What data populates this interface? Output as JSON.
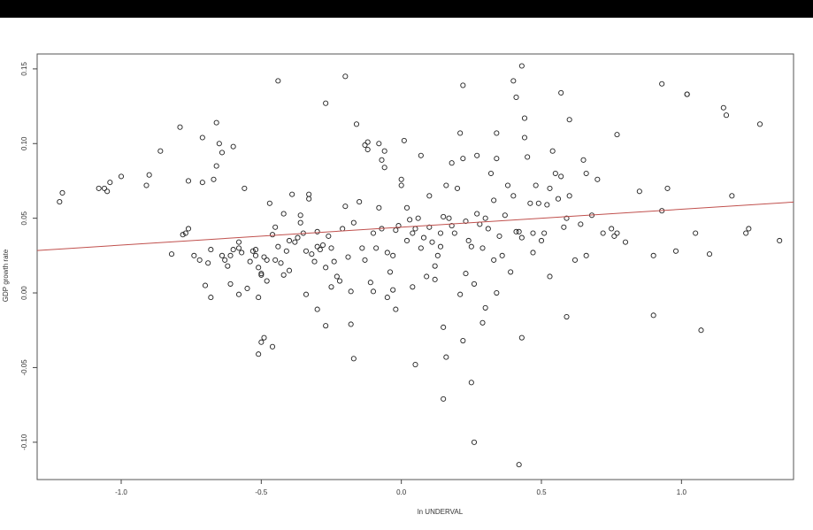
{
  "chart_data": {
    "type": "scatter",
    "title": "",
    "xlabel": "ln UNDERVAL",
    "ylabel": "GDP growth rate",
    "xlim": [
      -1.3,
      1.4
    ],
    "ylim": [
      -0.125,
      0.16
    ],
    "x_ticks": [
      -1.0,
      -0.5,
      0.0,
      0.5,
      1.0
    ],
    "x_tick_labels": [
      "-1.0",
      "-0.5",
      "0.0",
      "0.5",
      "1.0"
    ],
    "y_ticks": [
      -0.1,
      -0.05,
      0.0,
      0.05,
      0.1,
      0.15
    ],
    "y_tick_labels": [
      "-0.10",
      "-0.05",
      "0.00",
      "0.05",
      "0.10",
      "0.15"
    ],
    "grid": false,
    "regression_line": {
      "color": "#c0504d",
      "intercept": 0.044,
      "slope": 0.012
    },
    "points": [
      [
        -1.22,
        0.061
      ],
      [
        -1.21,
        0.067
      ],
      [
        -1.08,
        0.07
      ],
      [
        -1.06,
        0.07
      ],
      [
        -1.05,
        0.068
      ],
      [
        -1.04,
        0.074
      ],
      [
        -1.0,
        0.078
      ],
      [
        -0.91,
        0.072
      ],
      [
        -0.9,
        0.079
      ],
      [
        -0.86,
        0.095
      ],
      [
        -0.82,
        0.026
      ],
      [
        -0.79,
        0.111
      ],
      [
        -0.78,
        0.039
      ],
      [
        -0.77,
        0.04
      ],
      [
        -0.76,
        0.043
      ],
      [
        -0.76,
        0.075
      ],
      [
        -0.74,
        0.025
      ],
      [
        -0.72,
        0.022
      ],
      [
        -0.71,
        0.074
      ],
      [
        -0.71,
        0.104
      ],
      [
        -0.7,
        0.005
      ],
      [
        -0.69,
        0.02
      ],
      [
        -0.68,
        0.029
      ],
      [
        -0.67,
        0.076
      ],
      [
        -0.66,
        0.085
      ],
      [
        -0.66,
        0.114
      ],
      [
        -0.65,
        0.1
      ],
      [
        -0.64,
        0.094
      ],
      [
        -0.64,
        0.025
      ],
      [
        -0.63,
        0.022
      ],
      [
        -0.62,
        0.018
      ],
      [
        -0.61,
        0.006
      ],
      [
        -0.61,
        0.025
      ],
      [
        -0.6,
        0.029
      ],
      [
        -0.6,
        0.098
      ],
      [
        -0.58,
        0.03
      ],
      [
        -0.57,
        0.027
      ],
      [
        -0.56,
        0.07
      ],
      [
        -0.55,
        0.003
      ],
      [
        -0.54,
        0.021
      ],
      [
        -0.53,
        0.028
      ],
      [
        -0.52,
        0.029
      ],
      [
        -0.52,
        0.025
      ],
      [
        -0.51,
        0.017
      ],
      [
        -0.5,
        0.012
      ],
      [
        -0.5,
        0.013
      ],
      [
        -0.49,
        0.024
      ],
      [
        -0.48,
        0.008
      ],
      [
        -0.48,
        0.022
      ],
      [
        -0.47,
        0.06
      ],
      [
        -0.46,
        0.039
      ],
      [
        -0.45,
        0.022
      ],
      [
        -0.45,
        0.044
      ],
      [
        -0.44,
        0.031
      ],
      [
        -0.43,
        0.02
      ],
      [
        -0.42,
        0.012
      ],
      [
        -0.41,
        0.028
      ],
      [
        -0.4,
        0.035
      ],
      [
        -0.39,
        0.066
      ],
      [
        -0.38,
        0.034
      ],
      [
        -0.37,
        0.037
      ],
      [
        -0.36,
        0.052
      ],
      [
        -0.35,
        0.04
      ],
      [
        -0.34,
        0.028
      ],
      [
        -0.33,
        0.063
      ],
      [
        -0.33,
        0.066
      ],
      [
        -0.32,
        0.026
      ],
      [
        -0.31,
        0.021
      ],
      [
        -0.3,
        0.031
      ],
      [
        -0.29,
        0.029
      ],
      [
        -0.28,
        0.032
      ],
      [
        -0.27,
        0.017
      ],
      [
        -0.26,
        0.038
      ],
      [
        -0.25,
        0.03
      ],
      [
        -0.24,
        0.021
      ],
      [
        -0.23,
        0.011
      ],
      [
        -0.22,
        0.008
      ],
      [
        -0.21,
        0.043
      ],
      [
        -0.2,
        0.058
      ],
      [
        -0.19,
        0.024
      ],
      [
        -0.18,
        0.001
      ],
      [
        -0.17,
        0.047
      ],
      [
        -0.16,
        0.113
      ],
      [
        -0.15,
        0.061
      ],
      [
        -0.14,
        0.03
      ],
      [
        -0.13,
        0.022
      ],
      [
        -0.12,
        0.101
      ],
      [
        -0.12,
        0.096
      ],
      [
        -0.11,
        0.007
      ],
      [
        -0.1,
        0.04
      ],
      [
        -0.09,
        0.03
      ],
      [
        -0.08,
        0.1
      ],
      [
        -0.08,
        0.057
      ],
      [
        -0.07,
        0.089
      ],
      [
        -0.06,
        0.084
      ],
      [
        -0.06,
        0.095
      ],
      [
        -0.05,
        0.027
      ],
      [
        -0.04,
        0.014
      ],
      [
        -0.03,
        0.002
      ],
      [
        -0.02,
        0.042
      ],
      [
        -0.01,
        0.045
      ],
      [
        0.0,
        0.072
      ],
      [
        0.0,
        0.076
      ],
      [
        0.01,
        0.102
      ],
      [
        0.02,
        0.057
      ],
      [
        0.03,
        0.049
      ],
      [
        0.04,
        0.04
      ],
      [
        0.05,
        0.043
      ],
      [
        0.06,
        0.05
      ],
      [
        0.07,
        0.03
      ],
      [
        0.08,
        0.037
      ],
      [
        0.09,
        0.011
      ],
      [
        0.1,
        0.044
      ],
      [
        0.11,
        0.034
      ],
      [
        0.12,
        0.018
      ],
      [
        0.13,
        0.025
      ],
      [
        0.14,
        0.04
      ],
      [
        0.15,
        0.051
      ],
      [
        0.16,
        0.072
      ],
      [
        0.17,
        0.05
      ],
      [
        0.18,
        0.045
      ],
      [
        0.19,
        0.04
      ],
      [
        0.2,
        0.07
      ],
      [
        0.21,
        0.107
      ],
      [
        0.22,
        0.09
      ],
      [
        0.23,
        0.048
      ],
      [
        0.24,
        0.035
      ],
      [
        0.25,
        0.031
      ],
      [
        0.26,
        0.006
      ],
      [
        0.27,
        0.053
      ],
      [
        0.28,
        0.046
      ],
      [
        0.29,
        0.03
      ],
      [
        0.3,
        0.05
      ],
      [
        0.31,
        0.043
      ],
      [
        0.32,
        0.08
      ],
      [
        0.33,
        0.062
      ],
      [
        0.34,
        0.09
      ],
      [
        0.35,
        0.038
      ],
      [
        0.36,
        0.025
      ],
      [
        0.37,
        0.052
      ],
      [
        0.38,
        0.072
      ],
      [
        0.39,
        0.014
      ],
      [
        0.4,
        0.065
      ],
      [
        0.41,
        0.041
      ],
      [
        0.42,
        0.041
      ],
      [
        0.43,
        0.037
      ],
      [
        0.44,
        0.104
      ],
      [
        0.45,
        0.091
      ],
      [
        0.46,
        0.06
      ],
      [
        0.47,
        0.04
      ],
      [
        0.48,
        0.072
      ],
      [
        0.49,
        0.06
      ],
      [
        0.5,
        0.035
      ],
      [
        0.51,
        0.04
      ],
      [
        0.52,
        0.059
      ],
      [
        0.53,
        0.07
      ],
      [
        0.54,
        0.095
      ],
      [
        0.55,
        0.08
      ],
      [
        0.56,
        0.063
      ],
      [
        0.57,
        0.078
      ],
      [
        0.58,
        0.044
      ],
      [
        0.59,
        0.05
      ],
      [
        0.6,
        0.065
      ],
      [
        0.62,
        0.022
      ],
      [
        0.64,
        0.046
      ],
      [
        0.65,
        0.089
      ],
      [
        0.66,
        0.08
      ],
      [
        0.68,
        0.052
      ],
      [
        0.7,
        0.076
      ],
      [
        0.72,
        0.04
      ],
      [
        0.75,
        0.043
      ],
      [
        0.77,
        0.04
      ],
      [
        0.8,
        0.034
      ],
      [
        0.85,
        0.068
      ],
      [
        0.9,
        0.025
      ],
      [
        0.93,
        0.055
      ],
      [
        0.95,
        0.07
      ],
      [
        0.98,
        0.028
      ],
      [
        1.02,
        0.133
      ],
      [
        1.05,
        0.04
      ],
      [
        1.1,
        0.026
      ],
      [
        1.15,
        0.124
      ],
      [
        1.16,
        0.119
      ],
      [
        1.18,
        0.065
      ],
      [
        1.23,
        0.04
      ],
      [
        1.24,
        0.043
      ],
      [
        1.28,
        0.113
      ],
      [
        1.35,
        0.035
      ],
      [
        -0.44,
        0.142
      ],
      [
        -0.27,
        0.127
      ],
      [
        -0.2,
        0.145
      ],
      [
        0.22,
        0.139
      ],
      [
        0.4,
        0.142
      ],
      [
        0.41,
        0.131
      ],
      [
        0.43,
        0.152
      ],
      [
        0.57,
        0.134
      ],
      [
        0.6,
        0.116
      ],
      [
        0.93,
        0.14
      ],
      [
        1.02,
        0.133
      ],
      [
        0.44,
        0.117
      ],
      [
        0.34,
        0.107
      ],
      [
        0.77,
        0.106
      ],
      [
        -0.51,
        -0.003
      ],
      [
        -0.51,
        -0.041
      ],
      [
        -0.5,
        -0.033
      ],
      [
        -0.49,
        -0.03
      ],
      [
        -0.46,
        -0.036
      ],
      [
        -0.3,
        -0.011
      ],
      [
        -0.27,
        -0.022
      ],
      [
        -0.18,
        -0.021
      ],
      [
        -0.17,
        -0.044
      ],
      [
        -0.05,
        -0.003
      ],
      [
        -0.02,
        -0.011
      ],
      [
        0.05,
        -0.048
      ],
      [
        0.15,
        -0.023
      ],
      [
        0.16,
        -0.043
      ],
      [
        0.15,
        -0.071
      ],
      [
        0.21,
        -0.001
      ],
      [
        0.22,
        -0.032
      ],
      [
        0.25,
        -0.06
      ],
      [
        0.26,
        -0.1
      ],
      [
        0.29,
        -0.02
      ],
      [
        0.3,
        -0.01
      ],
      [
        0.43,
        -0.03
      ],
      [
        0.42,
        -0.115
      ],
      [
        0.59,
        -0.016
      ],
      [
        0.9,
        -0.015
      ],
      [
        1.07,
        -0.025
      ],
      [
        -0.68,
        -0.003
      ],
      [
        -0.58,
        -0.001
      ],
      [
        -0.34,
        -0.001
      ],
      [
        -0.25,
        0.004
      ],
      [
        -0.1,
        0.001
      ],
      [
        0.04,
        0.004
      ],
      [
        0.12,
        0.009
      ],
      [
        0.23,
        0.013
      ],
      [
        0.34,
        0.0
      ],
      [
        0.53,
        0.011
      ],
      [
        0.66,
        0.025
      ],
      [
        0.76,
        0.038
      ],
      [
        0.02,
        0.035
      ],
      [
        -0.03,
        0.025
      ],
      [
        0.1,
        0.065
      ],
      [
        -0.13,
        0.099
      ],
      [
        0.18,
        0.087
      ],
      [
        0.07,
        0.092
      ],
      [
        0.27,
        0.092
      ],
      [
        -0.3,
        0.041
      ],
      [
        -0.36,
        0.047
      ],
      [
        -0.4,
        0.015
      ],
      [
        -0.58,
        0.034
      ],
      [
        -0.42,
        0.053
      ],
      [
        0.47,
        0.027
      ],
      [
        0.33,
        0.022
      ],
      [
        0.14,
        0.031
      ],
      [
        -0.07,
        0.043
      ]
    ]
  }
}
